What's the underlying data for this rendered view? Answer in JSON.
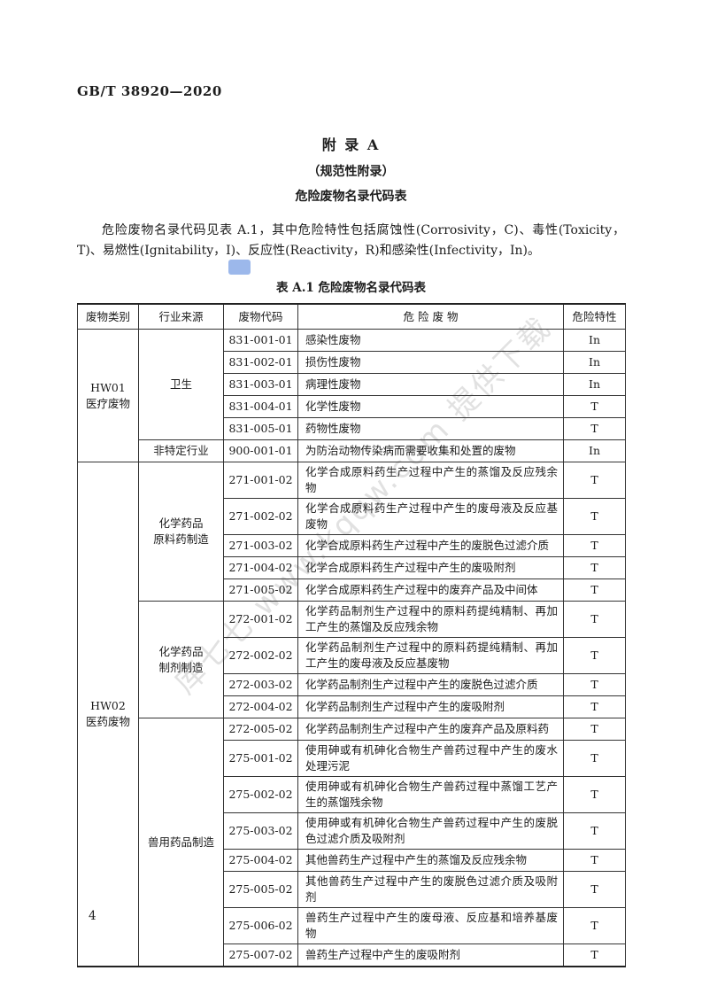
{
  "page": {
    "standard_number": "GB/T 38920—2020",
    "page_number": "4"
  },
  "appendix": {
    "title": "附  录  A",
    "subtitle": "（规范性附录）",
    "name": "危险废物名录代码表",
    "intro": "危险废物名录代码见表 A.1，其中危险特性包括腐蚀性(Corrosivity，C)、毒性(Toxicity，T)、易燃性(Ignitability，I)、反应性(Reactivity，R)和感染性(Infectivity，In)。"
  },
  "table": {
    "caption": "表 A.1  危险废物名录代码表",
    "headers": [
      "废物类别",
      "行业来源",
      "废物代码",
      "危 险 废 物",
      "危险特性"
    ],
    "categories": [
      {
        "category": "HW01\n医疗废物",
        "industries": [
          {
            "industry": "卫生",
            "rows": [
              {
                "code": "831-001-01",
                "name": "感染性废物",
                "hazard": "In"
              },
              {
                "code": "831-002-01",
                "name": "损伤性废物",
                "hazard": "In"
              },
              {
                "code": "831-003-01",
                "name": "病理性废物",
                "hazard": "In"
              },
              {
                "code": "831-004-01",
                "name": "化学性废物",
                "hazard": "T"
              },
              {
                "code": "831-005-01",
                "name": "药物性废物",
                "hazard": "T"
              }
            ]
          },
          {
            "industry": "非特定行业",
            "rows": [
              {
                "code": "900-001-01",
                "name": "为防治动物传染病而需要收集和处置的废物",
                "hazard": "In"
              }
            ]
          }
        ]
      },
      {
        "category": "HW02\n医药废物",
        "industries": [
          {
            "industry": "化学药品\n原料药制造",
            "rows": [
              {
                "code": "271-001-02",
                "name": "化学合成原料药生产过程中产生的蒸馏及反应残余物",
                "hazard": "T"
              },
              {
                "code": "271-002-02",
                "name": "化学合成原料药生产过程中产生的废母液及反应基废物",
                "hazard": "T"
              },
              {
                "code": "271-003-02",
                "name": "化学合成原料药生产过程中产生的废脱色过滤介质",
                "hazard": "T"
              },
              {
                "code": "271-004-02",
                "name": "化学合成原料药生产过程中产生的废吸附剂",
                "hazard": "T"
              },
              {
                "code": "271-005-02",
                "name": "化学合成原料药生产过程中的废弃产品及中间体",
                "hazard": "T"
              }
            ]
          },
          {
            "industry": "化学药品\n制剂制造",
            "rows": [
              {
                "code": "272-001-02",
                "name": "化学药品制剂生产过程中的原料药提纯精制、再加工产生的蒸馏及反应残余物",
                "hazard": "T"
              },
              {
                "code": "272-002-02",
                "name": "化学药品制剂生产过程中的原料药提纯精制、再加工产生的废母液及反应基废物",
                "hazard": "T"
              },
              {
                "code": "272-003-02",
                "name": "化学药品制剂生产过程中产生的废脱色过滤介质",
                "hazard": "T"
              },
              {
                "code": "272-004-02",
                "name": "化学药品制剂生产过程中产生的废吸附剂",
                "hazard": "T"
              }
            ]
          },
          {
            "industry": "兽用药品制造",
            "rows": [
              {
                "code": "272-005-02",
                "name": "化学药品制剂生产过程中产生的废弃产品及原料药",
                "hazard": "T"
              },
              {
                "code": "275-001-02",
                "name": "使用砷或有机砷化合物生产兽药过程中产生的废水处理污泥",
                "hazard": "T"
              },
              {
                "code": "275-002-02",
                "name": "使用砷或有机砷化合物生产兽药过程中蒸馏工艺产生的蒸馏残余物",
                "hazard": "T"
              },
              {
                "code": "275-003-02",
                "name": "使用砷或有机砷化合物生产兽药过程中产生的废脱色过滤介质及吸附剂",
                "hazard": "T"
              },
              {
                "code": "275-004-02",
                "name": "其他兽药生产过程中产生的蒸馏及反应残余物",
                "hazard": "T"
              },
              {
                "code": "275-005-02",
                "name": "其他兽药生产过程中产生的废脱色过滤介质及吸附剂",
                "hazard": "T"
              },
              {
                "code": "275-006-02",
                "name": "兽药生产过程中产生的废母液、反应基和培养基废物",
                "hazard": "T"
              },
              {
                "code": "275-007-02",
                "name": "兽药生产过程中产生的废吸附剂",
                "hazard": "T"
              }
            ]
          }
        ]
      }
    ]
  },
  "watermark": {
    "text": "库七七 www.kqqw.com 提供下载",
    "logo_color": "#4a7ddb"
  }
}
